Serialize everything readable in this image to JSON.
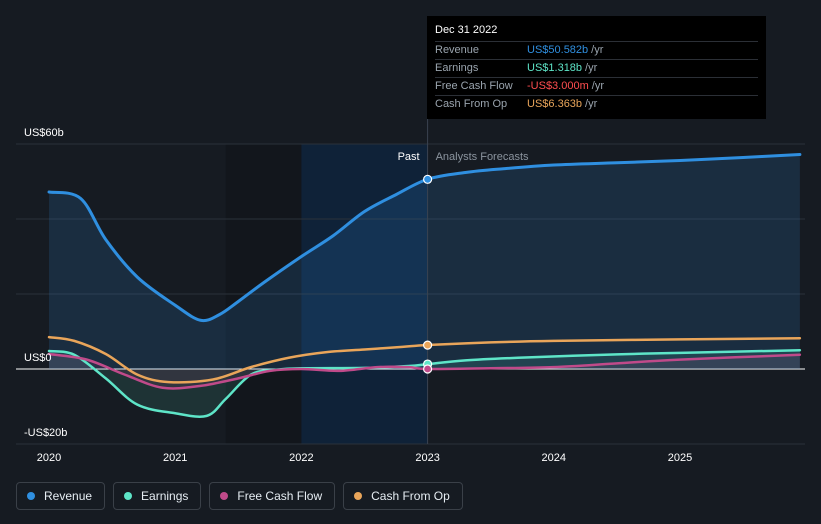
{
  "chart_data": {
    "type": "line",
    "title": "",
    "y_unit": "US$",
    "ylim": [
      -20,
      60
    ],
    "y_ticks": [
      {
        "value": 60,
        "label": "US$60b"
      },
      {
        "value": 0,
        "label": "US$0"
      },
      {
        "value": -20,
        "label": "-US$20b"
      }
    ],
    "xlim": [
      2019.9,
      2025.95
    ],
    "x_ticks": [
      {
        "value": 2020,
        "label": "2020"
      },
      {
        "value": 2021,
        "label": "2021"
      },
      {
        "value": 2022,
        "label": "2022"
      },
      {
        "value": 2023,
        "label": "2023"
      },
      {
        "value": 2024,
        "label": "2024"
      },
      {
        "value": 2025,
        "label": "2025"
      }
    ],
    "divider_x": 2023,
    "highlight_start_x": 2022,
    "past_label": "Past",
    "forecast_label": "Analysts Forecasts",
    "series": [
      {
        "name": "Revenue",
        "color": "#2f8fe0",
        "area": true,
        "x": [
          2020.0,
          2020.25,
          2020.45,
          2020.7,
          2021.0,
          2021.2,
          2021.35,
          2021.5,
          2021.7,
          2022.0,
          2022.25,
          2022.5,
          2022.75,
          2023.0,
          2023.3,
          2023.6,
          2024.0,
          2024.5,
          2025.0,
          2025.5,
          2025.95
        ],
        "values": [
          47.2,
          45.5,
          34.5,
          24.5,
          17.0,
          13.0,
          14.5,
          18.0,
          23.0,
          30.0,
          35.5,
          42.0,
          46.5,
          50.6,
          52.4,
          53.4,
          54.4,
          55.0,
          55.6,
          56.4,
          57.2
        ]
      },
      {
        "name": "Earnings",
        "color": "#5ee5c8",
        "area": true,
        "x": [
          2020.0,
          2020.2,
          2020.45,
          2020.7,
          2021.0,
          2021.25,
          2021.4,
          2021.6,
          2021.8,
          2022.0,
          2022.5,
          2022.85,
          2023.0,
          2023.3,
          2023.8,
          2024.5,
          2025.0,
          2025.95
        ],
        "values": [
          4.8,
          3.8,
          -2.5,
          -9.5,
          -11.8,
          -12.5,
          -8.0,
          -1.5,
          -0.2,
          0.2,
          0.3,
          0.8,
          1.3,
          2.3,
          3.1,
          3.9,
          4.3,
          5.0
        ]
      },
      {
        "name": "Free Cash Flow",
        "color": "#c04a8a",
        "area": true,
        "x": [
          2020.0,
          2020.3,
          2020.6,
          2020.9,
          2021.2,
          2021.5,
          2021.75,
          2022.0,
          2022.3,
          2022.6,
          2022.85,
          2023.0,
          2023.5,
          2024.0,
          2024.5,
          2025.0,
          2025.95
        ],
        "values": [
          4.0,
          2.5,
          -1.5,
          -5.0,
          -4.5,
          -2.5,
          -0.5,
          0.0,
          -0.5,
          0.5,
          0.5,
          0.0,
          0.2,
          0.5,
          1.5,
          2.5,
          3.8
        ]
      },
      {
        "name": "Cash From Op",
        "color": "#e9a55a",
        "area": false,
        "x": [
          2020.0,
          2020.2,
          2020.45,
          2020.7,
          2020.95,
          2021.3,
          2021.6,
          2021.9,
          2022.2,
          2022.5,
          2022.8,
          2023.0,
          2023.5,
          2024.0,
          2025.0,
          2025.95
        ],
        "values": [
          8.5,
          7.5,
          4.0,
          -1.5,
          -3.5,
          -2.8,
          0.5,
          3.0,
          4.5,
          5.2,
          5.9,
          6.4,
          7.1,
          7.5,
          7.9,
          8.2
        ]
      }
    ],
    "highlight_points": [
      {
        "series": "Revenue",
        "x": 2023,
        "value": 50.582
      },
      {
        "series": "Cash From Op",
        "x": 2023,
        "value": 6.363
      },
      {
        "series": "Earnings",
        "x": 2023,
        "value": 1.318
      },
      {
        "series": "Free Cash Flow",
        "x": 2023,
        "value": -0.003
      }
    ]
  },
  "tooltip": {
    "date": "Dec 31 2022",
    "rows": [
      {
        "name": "Revenue",
        "value": "US$50.582b",
        "unit": "/yr",
        "color": "#2f8fe0"
      },
      {
        "name": "Earnings",
        "value": "US$1.318b",
        "unit": "/yr",
        "color": "#5ee5c8"
      },
      {
        "name": "Free Cash Flow",
        "value": "-US$3.000m",
        "unit": "/yr",
        "color": "#ff4d4f"
      },
      {
        "name": "Cash From Op",
        "value": "US$6.363b",
        "unit": "/yr",
        "color": "#e9a55a"
      }
    ]
  },
  "legend": [
    {
      "label": "Revenue",
      "color": "#2f8fe0"
    },
    {
      "label": "Earnings",
      "color": "#5ee5c8"
    },
    {
      "label": "Free Cash Flow",
      "color": "#c04a8a"
    },
    {
      "label": "Cash From Op",
      "color": "#e9a55a"
    }
  ]
}
